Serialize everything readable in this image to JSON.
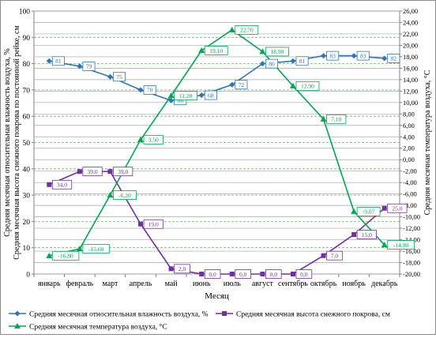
{
  "chart_data": {
    "type": "line",
    "categories": [
      "январь",
      "февраль",
      "март",
      "апрель",
      "май",
      "июнь",
      "июль",
      "август",
      "сентябрь",
      "октябрь",
      "ноябрь",
      "декабрь"
    ],
    "xlabel": "Месяц",
    "y_left": {
      "label_line1": "Средняя месячная относительная влажность воздуха, %",
      "label_line2": "Средняя месячная высота снежного покрова по постоянной рейке, см",
      "range": [
        0,
        100
      ],
      "step": 10,
      "ticks": [
        "0",
        "10",
        "20",
        "30",
        "40",
        "50",
        "60",
        "70",
        "80",
        "90",
        "100"
      ]
    },
    "y_right": {
      "label": "Средняя месячная температура воздуха, °С",
      "range": [
        -20,
        26
      ],
      "step": 2,
      "ticks": [
        "-20,00",
        "-18,00",
        "-16,00",
        "-14,00",
        "-12,00",
        "-10,00",
        "-8,00",
        "-6,00",
        "-4,00",
        "-2,00",
        "0,00",
        "2,00",
        "4,00",
        "6,00",
        "8,00",
        "10,00",
        "12,00",
        "14,00",
        "16,00",
        "18,00",
        "20,00",
        "22,00",
        "24,00",
        "26,00"
      ]
    },
    "series": [
      {
        "name": "Средняя месячная относительная влажность воздуха, %",
        "axis": "left",
        "color": "#2e75b6",
        "marker": "diamond",
        "values": [
          81,
          79,
          75,
          70,
          66,
          68,
          72,
          80,
          81,
          83,
          83,
          82
        ],
        "labels": [
          "81",
          "79",
          "75",
          "70",
          "66",
          "68",
          "72",
          "80",
          "81",
          "83",
          "83",
          "82"
        ]
      },
      {
        "name": "Средняя месячная высота снежного покрова, см",
        "axis": "left",
        "color": "#7030a0",
        "marker": "square",
        "values": [
          34,
          39,
          39,
          19,
          2,
          0,
          0,
          0,
          0,
          7,
          15,
          25
        ],
        "labels": [
          "34,0",
          "39,0",
          "39,0",
          "19,0",
          "2,0",
          "0,0",
          "0,0",
          "0,0",
          "0,0",
          "7,0",
          "15,0",
          "25,0"
        ]
      },
      {
        "name": "Средняя месячная температура воздуха, °С",
        "axis": "right",
        "color": "#00a651",
        "marker": "triangle",
        "values": [
          -16.8,
          -15.6,
          -6.2,
          3.5,
          11.2,
          19.1,
          22.7,
          18.9,
          12.9,
          7.1,
          -9.07,
          -14.9
        ],
        "labels": [
          "-16,80",
          "-15,60",
          "-6,20",
          "3,50",
          "11,20",
          "19,10",
          "22,70",
          "18,90",
          "12,90",
          "7,10",
          "-9,07",
          "-14,90"
        ]
      }
    ],
    "grid": true,
    "legend_position": "bottom"
  }
}
